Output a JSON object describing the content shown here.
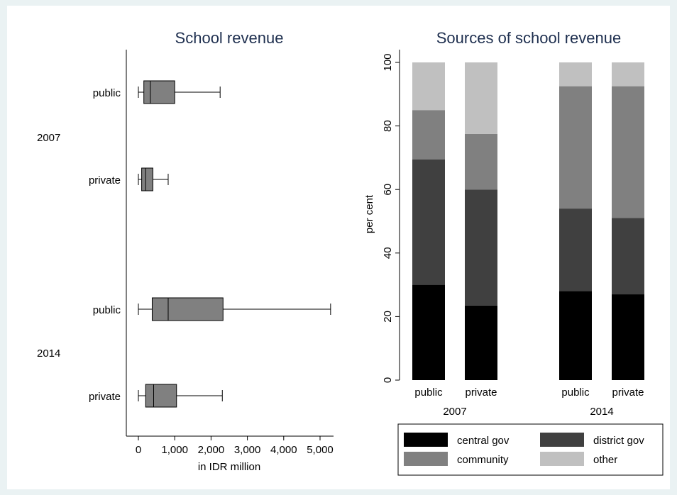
{
  "chart_data": [
    {
      "type": "box",
      "title": "School revenue",
      "xlabel": "in IDR million",
      "xlim": [
        0,
        5500
      ],
      "xticks": [
        0,
        1000,
        2000,
        3000,
        4000,
        5000
      ],
      "xtick_labels": [
        "0",
        "1,000",
        "2,000",
        "3,000",
        "4,000",
        "5,000"
      ],
      "groups": [
        {
          "year": "2007",
          "boxes": [
            {
              "label": "public",
              "whisker_low": 0,
              "q1": 150,
              "median": 330,
              "q3": 1000,
              "whisker_high": 2250
            },
            {
              "label": "private",
              "whisker_low": 0,
              "q1": 90,
              "median": 200,
              "q3": 400,
              "whisker_high": 820
            }
          ]
        },
        {
          "year": "2014",
          "boxes": [
            {
              "label": "public",
              "whisker_low": 0,
              "q1": 380,
              "median": 820,
              "q3": 2330,
              "whisker_high": 5290
            },
            {
              "label": "private",
              "whisker_low": 0,
              "q1": 200,
              "median": 420,
              "q3": 1050,
              "whisker_high": 2310
            }
          ]
        }
      ],
      "colors": {
        "box": "#808080"
      }
    },
    {
      "type": "stacked_bar",
      "title": "Sources of school revenue",
      "ylabel": "per cent",
      "ylim": [
        0,
        100
      ],
      "yticks": [
        0,
        20,
        40,
        60,
        80,
        100
      ],
      "groups": [
        {
          "label": "2007",
          "categories": [
            "public",
            "private"
          ]
        },
        {
          "label": "2014",
          "categories": [
            "public",
            "private"
          ]
        }
      ],
      "series": [
        {
          "name": "central gov",
          "color": "#000000",
          "values": [
            30,
            23.5,
            28,
            27
          ]
        },
        {
          "name": "district gov",
          "color": "#404040",
          "values": [
            39.5,
            36.5,
            26,
            24
          ]
        },
        {
          "name": "community",
          "color": "#808080",
          "values": [
            15.5,
            17.5,
            38.5,
            41.5
          ]
        },
        {
          "name": "other",
          "color": "#c0c0c0",
          "values": [
            15,
            22.5,
            7.5,
            7.5
          ]
        }
      ],
      "legend_position": "bottom"
    }
  ]
}
